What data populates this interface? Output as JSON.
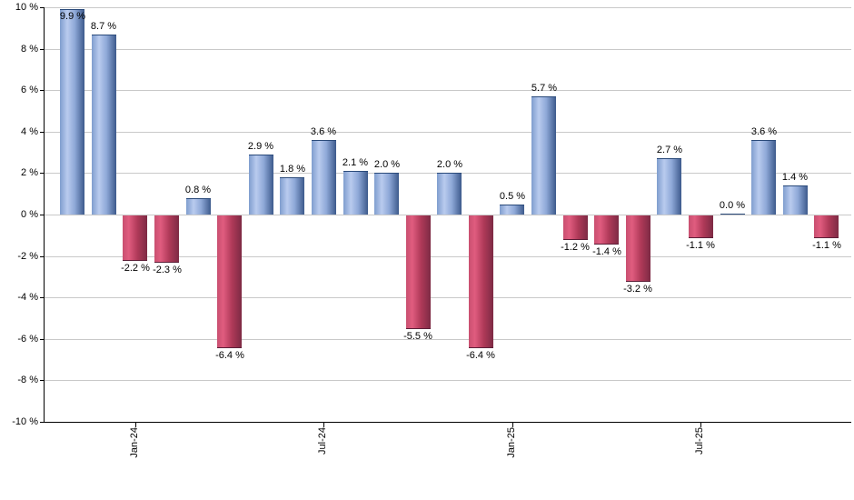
{
  "chart_data": {
    "type": "bar",
    "title": "",
    "xlabel": "",
    "ylabel": "",
    "unit": "%",
    "values": [
      9.9,
      8.7,
      -2.2,
      -2.3,
      0.8,
      -6.4,
      2.9,
      1.8,
      3.6,
      2.1,
      2.0,
      -5.5,
      2.0,
      -6.4,
      0.5,
      5.7,
      -1.2,
      -1.4,
      -3.2,
      2.7,
      -1.1,
      0.0,
      3.6,
      1.4,
      -1.1
    ],
    "data_labels": [
      "9.9 %",
      "8.7 %",
      "-2.2 %",
      "-2.3 %",
      "0.8 %",
      "-6.4 %",
      "2.9 %",
      "1.8 %",
      "3.6 %",
      "2.1 %",
      "2.0 %",
      "-5.5 %",
      "2.0 %",
      "-6.4 %",
      "0.5 %",
      "5.7 %",
      "-1.2 %",
      "-1.4 %",
      "-3.2 %",
      "2.7 %",
      "-1.1 %",
      "0.0 %",
      "3.6 %",
      "1.4 %",
      "-1.1 %"
    ],
    "x_tick_labels": [
      "Jan-24",
      "Jul-24",
      "Jan-25",
      "Jul-25"
    ],
    "x_tick_bar_indices": [
      2,
      8,
      14,
      20
    ],
    "y_tick_values": [
      10,
      8,
      6,
      4,
      2,
      0,
      -2,
      -4,
      -6,
      -8,
      -10
    ],
    "y_tick_labels": [
      "10 %",
      "8 %",
      "6 %",
      "4 %",
      "2 %",
      "0 %",
      "-2 %",
      "-4 %",
      "-6 %",
      "-8 %",
      "-10 %"
    ],
    "ylim": [
      -10,
      10
    ],
    "grid": "horizontal-only",
    "legend": "none",
    "colors": {
      "positive_bar_gradient": [
        "#7f9dce",
        "#b9cbee",
        "#8fa9d8",
        "#3d5a8c"
      ],
      "positive_bar_edge": "#2a4a7a",
      "negative_bar_gradient": [
        "#c94f70",
        "#e05c7f",
        "#b03a59",
        "#7d2a44"
      ],
      "negative_bar_edge": "#5c1f38",
      "gridline": "#c9c9c9",
      "axis_line": "#000000",
      "label_text": "#000000"
    }
  }
}
